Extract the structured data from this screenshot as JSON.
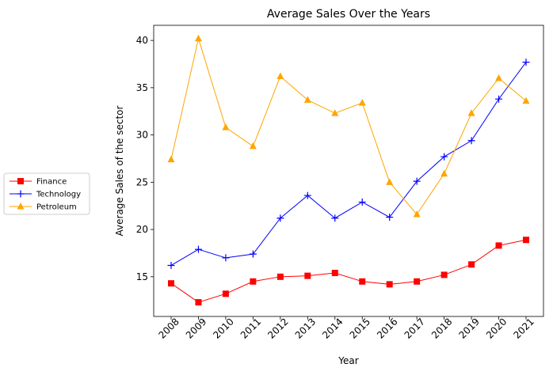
{
  "chart_data": {
    "type": "line",
    "title": "Average Sales Over the Years",
    "xlabel": "Year",
    "ylabel": "Average Sales of the sector",
    "x": [
      "2008",
      "2009",
      "2010",
      "2011",
      "2012",
      "2013",
      "2014",
      "2015",
      "2016",
      "2017",
      "2018",
      "2019",
      "2020",
      "2021"
    ],
    "ylim": [
      10.8,
      41.6
    ],
    "yticks": [
      15,
      20,
      25,
      30,
      35,
      40
    ],
    "grid": false,
    "legend_position": "left outside",
    "series": [
      {
        "name": "Finance",
        "color": "#ff0000",
        "marker": "square",
        "values": [
          14.3,
          12.3,
          13.2,
          14.5,
          15.0,
          15.1,
          15.4,
          14.5,
          14.2,
          14.5,
          15.2,
          16.3,
          18.3,
          18.9
        ]
      },
      {
        "name": "Technology",
        "color": "#0000ff",
        "marker": "plus",
        "values": [
          16.2,
          17.9,
          17.0,
          17.4,
          21.2,
          23.6,
          21.2,
          22.9,
          21.3,
          25.1,
          27.7,
          29.4,
          33.8,
          37.7
        ]
      },
      {
        "name": "Petroleum",
        "color": "#ffa500",
        "marker": "triangle",
        "values": [
          27.4,
          40.2,
          30.8,
          28.8,
          36.2,
          33.7,
          32.3,
          33.4,
          25.0,
          21.6,
          25.9,
          32.3,
          36.0,
          33.6
        ]
      }
    ]
  }
}
